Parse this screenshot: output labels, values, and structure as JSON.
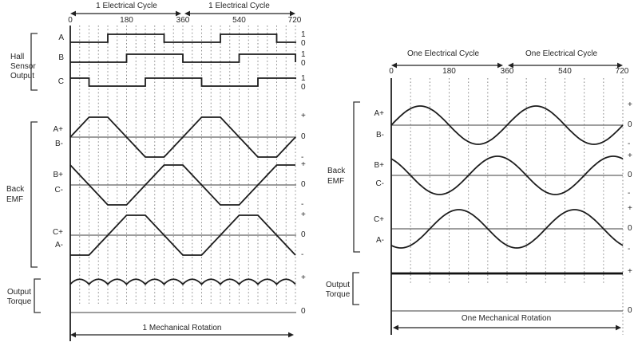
{
  "colors": {
    "background": "#ffffff",
    "waveform_line": "#1c1c1c",
    "zero_line": "#7f7f7f",
    "grid_line": "#8a8a8a",
    "text": "#262626"
  },
  "left_panel": {
    "cycle_labels": [
      "1 Electrical Cycle",
      "1 Electrical Cycle"
    ],
    "ticks": [
      "0",
      "180",
      "360",
      "540",
      "720"
    ],
    "hall": {
      "group_label": [
        "Hall",
        "Sensor",
        "Output"
      ],
      "rows": [
        {
          "name": "A",
          "level_labels": [
            "1",
            "0"
          ]
        },
        {
          "name": "B",
          "level_labels": [
            "1",
            "0"
          ]
        },
        {
          "name": "C",
          "level_labels": [
            "1",
            "0"
          ]
        }
      ]
    },
    "emf": {
      "group_label": [
        "Back",
        "EMF"
      ],
      "rows": [
        {
          "pos": "A+",
          "neg": "B-",
          "level_labels": [
            "+",
            "0",
            "-"
          ]
        },
        {
          "pos": "B+",
          "neg": "C-",
          "level_labels": [
            "+",
            "0",
            "-"
          ]
        },
        {
          "pos": "C+",
          "neg": "A-",
          "level_labels": [
            "+",
            "0",
            "-"
          ]
        }
      ]
    },
    "torque": {
      "group_label": [
        "Output",
        "Torque"
      ],
      "level_labels": [
        "+",
        "0"
      ]
    },
    "rotation_label": "1 Mechanical Rotation"
  },
  "right_panel": {
    "cycle_labels": [
      "One Electrical Cycle",
      "One Electrical Cycle"
    ],
    "ticks": [
      "0",
      "180",
      "360",
      "540",
      "720"
    ],
    "emf": {
      "group_label": [
        "Back",
        "EMF"
      ],
      "rows": [
        {
          "pos": "A+",
          "neg": "B-",
          "level_labels": [
            "+",
            "0",
            "-"
          ]
        },
        {
          "pos": "B+",
          "neg": "C-",
          "level_labels": [
            "+",
            "0",
            "-"
          ]
        },
        {
          "pos": "C+",
          "neg": "A-",
          "level_labels": [
            "+",
            "0",
            "-"
          ]
        }
      ]
    },
    "torque": {
      "group_label": [
        "Output",
        "Torque"
      ],
      "level_labels": [
        "+",
        "0"
      ]
    },
    "rotation_label": "One Mechanical Rotation"
  },
  "chart_data": [
    {
      "panel": "left",
      "type": "line",
      "x_axis": {
        "range_deg": [
          0,
          720
        ],
        "ticks": [
          0,
          180,
          360,
          540,
          720
        ],
        "grid_step_deg": 30,
        "electrical_cycles": 2,
        "span": "1 Mechanical Rotation"
      },
      "signals": [
        {
          "name": "Hall A",
          "kind": "digital",
          "levels": [
            1,
            0
          ],
          "high_deg": [
            [
              120,
              300
            ],
            [
              480,
              660
            ]
          ],
          "drops_at_end": false
        },
        {
          "name": "Hall B",
          "kind": "digital",
          "levels": [
            1,
            0
          ],
          "high_deg": [
            [
              180,
              360
            ],
            [
              540,
              720
            ]
          ],
          "drops_at_end": true
        },
        {
          "name": "Hall C",
          "kind": "digital",
          "levels": [
            1,
            0
          ],
          "high_deg": [
            [
              0,
              60
            ],
            [
              240,
              420
            ],
            [
              600,
              720
            ]
          ],
          "drops_at_end": false
        },
        {
          "name": "Back EMF A+/B-",
          "kind": "trapezoid",
          "phase_deg": 0,
          "points": [
            [
              0,
              0
            ],
            [
              60,
              1
            ],
            [
              120,
              1
            ],
            [
              240,
              -1
            ],
            [
              300,
              -1
            ],
            [
              420,
              1
            ],
            [
              480,
              1
            ],
            [
              600,
              -1
            ],
            [
              660,
              -1
            ],
            [
              720,
              0
            ]
          ]
        },
        {
          "name": "Back EMF B+/C-",
          "kind": "trapezoid",
          "phase_deg": 120,
          "points": [
            [
              0,
              1
            ],
            [
              120,
              -1
            ],
            [
              180,
              -1
            ],
            [
              300,
              1
            ],
            [
              360,
              1
            ],
            [
              480,
              -1
            ],
            [
              540,
              -1
            ],
            [
              660,
              1
            ],
            [
              720,
              1
            ]
          ]
        },
        {
          "name": "Back EMF C+/A-",
          "kind": "trapezoid",
          "phase_deg": -120,
          "points": [
            [
              0,
              -1
            ],
            [
              60,
              -1
            ],
            [
              180,
              1
            ],
            [
              240,
              1
            ],
            [
              360,
              -1
            ],
            [
              420,
              -1
            ],
            [
              540,
              1
            ],
            [
              600,
              1
            ],
            [
              720,
              -1
            ]
          ]
        },
        {
          "name": "Output Torque",
          "kind": "ripple",
          "humps": 12,
          "level": "+"
        }
      ]
    },
    {
      "panel": "right",
      "type": "line",
      "x_axis": {
        "range_deg": [
          0,
          720
        ],
        "ticks": [
          0,
          180,
          360,
          540,
          720
        ],
        "grid_step_deg": 60,
        "electrical_cycles": 2,
        "span": "One Mechanical Rotation"
      },
      "signals": [
        {
          "name": "Back EMF A+/B-",
          "kind": "sine",
          "phase_deg": 0,
          "amplitude": 1
        },
        {
          "name": "Back EMF B+/C-",
          "kind": "sine",
          "phase_deg": 120,
          "amplitude": 1
        },
        {
          "name": "Back EMF C+/A-",
          "kind": "sine",
          "phase_deg": -120,
          "amplitude": 1
        },
        {
          "name": "Output Torque",
          "kind": "constant",
          "level": "+"
        }
      ]
    }
  ]
}
